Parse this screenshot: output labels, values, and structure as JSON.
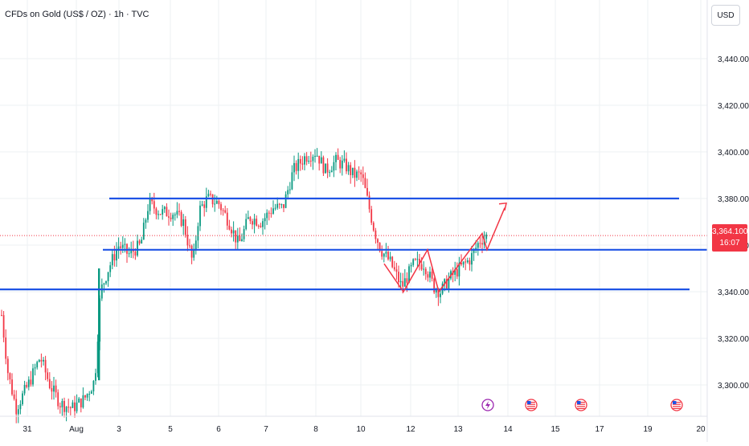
{
  "header": {
    "title": "CFDs on Gold (US$ / OZ) · 1h · TVC",
    "currency": "USD"
  },
  "price_badge": {
    "price": "3,364.100",
    "countdown": "16:07",
    "color": "#f23645"
  },
  "chart_data": {
    "type": "candlestick",
    "y_axis": {
      "ticks": [
        3300,
        3320,
        3340,
        3360,
        3380,
        3400,
        3420,
        3440
      ],
      "tick_labels": [
        "3,300.000",
        "3,320.000",
        "3,340.000",
        "3,360.000",
        "3,380.000",
        "3,400.000",
        "3,420.000",
        "3,440.000"
      ],
      "ylim": [
        3285,
        3460
      ]
    },
    "x_axis": {
      "tick_labels": [
        "31",
        "Aug",
        "3",
        "5",
        "6",
        "7",
        "8",
        "10",
        "12",
        "13",
        "14",
        "15",
        "17",
        "19",
        "20"
      ]
    },
    "current_price": 3364.1,
    "horizontal_lines": [
      {
        "name": "resistance",
        "price": 3380,
        "color": "#1e53e5"
      },
      {
        "name": "support-mid",
        "price": 3358,
        "color": "#1e53e5"
      },
      {
        "name": "support-low",
        "price": 3341,
        "color": "#1e53e5"
      }
    ],
    "annotation_path": [
      3352,
      3340,
      3358,
      3340,
      3365,
      3358,
      3376
    ],
    "colors": {
      "up": "#089981",
      "down": "#f23645",
      "grid": "#eef0f3",
      "line": "#1e53e5"
    },
    "event_icons": [
      "lightning-icon",
      "us-flag-icon",
      "us-flag-icon",
      "us-flag-icon"
    ]
  }
}
